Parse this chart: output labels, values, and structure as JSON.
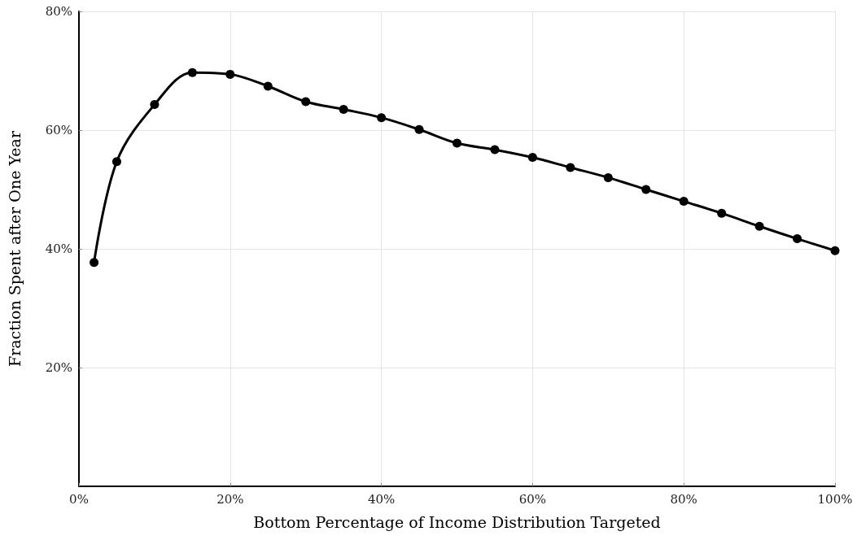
{
  "chart_data": {
    "type": "line",
    "xlabel": "Bottom Percentage of Income Distribution Targeted",
    "ylabel": "Fraction Spent after One Year",
    "x": [
      2,
      5,
      10,
      15,
      20,
      25,
      30,
      35,
      40,
      45,
      50,
      55,
      60,
      65,
      70,
      75,
      80,
      85,
      90,
      95,
      100
    ],
    "series": [
      {
        "color": "#000000",
        "values": [
          37.7,
          54.7,
          64.3,
          69.7,
          69.4,
          67.4,
          64.8,
          63.5,
          62.1,
          60.1,
          57.8,
          56.7,
          55.4,
          53.7,
          52.0,
          50.0,
          48.0,
          46.0,
          43.8,
          41.7,
          39.7
        ]
      }
    ],
    "xlim": [
      0,
      100
    ],
    "xticks": [
      {
        "value": 0,
        "label": "0%"
      },
      {
        "value": 20,
        "label": "20%"
      },
      {
        "value": 40,
        "label": "40%"
      },
      {
        "value": 60,
        "label": "60%"
      },
      {
        "value": 80,
        "label": "80%"
      },
      {
        "value": 100,
        "label": "100%"
      }
    ],
    "ylim": [
      0,
      80
    ],
    "yticks": [
      {
        "value": 20,
        "label": "20%"
      },
      {
        "value": 40,
        "label": "40%"
      },
      {
        "value": 60,
        "label": "60%"
      },
      {
        "value": 80,
        "label": "80%"
      }
    ],
    "grid": true,
    "marker": "circle",
    "line_style": "solid"
  }
}
